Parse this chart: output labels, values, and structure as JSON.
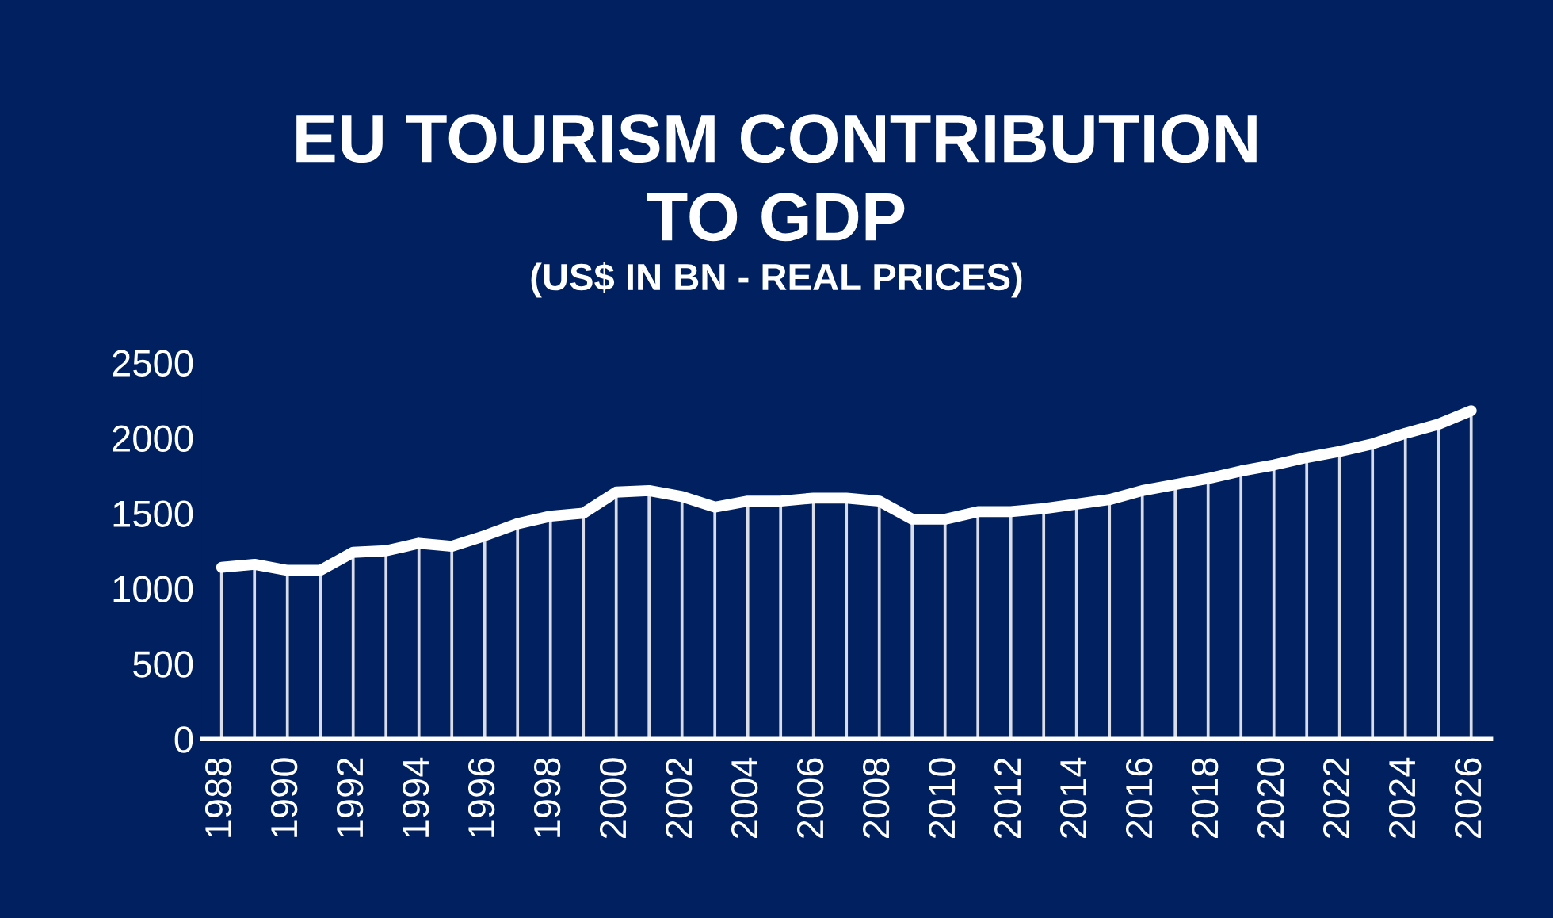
{
  "chart_data": {
    "type": "line",
    "title": "EU TOURISM CONTRIBUTION\nTO GDP",
    "subtitle": "(US$ IN BN - REAL PRICES)",
    "categories": [
      "1988",
      null,
      "1990",
      null,
      "1992",
      null,
      "1994",
      null,
      "1996",
      null,
      "1998",
      null,
      "2000",
      null,
      "2002",
      null,
      "2004",
      null,
      "2006",
      null,
      "2008",
      null,
      "2010",
      null,
      "2012",
      null,
      "2014",
      null,
      "2016",
      null,
      "2018",
      null,
      "2020",
      null,
      "2022",
      null,
      "2024",
      null,
      "2026"
    ],
    "series": [
      {
        "type": "bar",
        "color": "#d9dde8",
        "values": [
          1140,
          1160,
          1120,
          1120,
          1240,
          1250,
          1300,
          1280,
          1350,
          1430,
          1480,
          1500,
          1640,
          1650,
          1610,
          1540,
          1580,
          1580,
          1600,
          1600,
          1580,
          1460,
          1460,
          1510,
          1510,
          1530,
          1560,
          1590,
          1650,
          1690,
          1730,
          1780,
          1820,
          1870,
          1910,
          1960,
          2030,
          2090,
          2180
        ]
      },
      {
        "color": "#ffffff",
        "values": [
          1140,
          1160,
          1120,
          1120,
          1240,
          1250,
          1300,
          1280,
          1350,
          1430,
          1480,
          1500,
          1640,
          1650,
          1610,
          1540,
          1580,
          1580,
          1600,
          1600,
          1580,
          1460,
          1460,
          1510,
          1510,
          1530,
          1560,
          1590,
          1650,
          1690,
          1730,
          1780,
          1820,
          1870,
          1910,
          1960,
          2030,
          2090,
          2180
        ]
      }
    ],
    "ylim": [
      0,
      2500
    ],
    "yticks": [
      0,
      500,
      1000,
      1500,
      2000,
      2500
    ],
    "marker": "none",
    "line_style": "solid"
  }
}
